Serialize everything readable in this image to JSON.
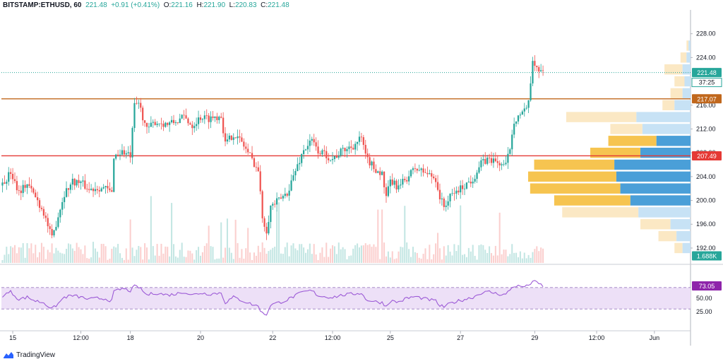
{
  "header": {
    "symbol": "BITSTAMP:ETHUSD, 60",
    "last": "221.48",
    "change": "+0.91 (+0.41%)",
    "o_label": "O:",
    "o": "221.16",
    "h_label": "H:",
    "h": "221.90",
    "l_label": "L:",
    "l": "220.83",
    "c_label": "C:",
    "c": "221.48"
  },
  "branding": {
    "logo": "tradingview-logo-icon",
    "name": "TradingView"
  },
  "colors": {
    "up": "#26a69a",
    "down": "#ef5350",
    "current_line": "#26a69a",
    "resistance": "#c0671c",
    "support": "#e53935",
    "rsi_line": "#9c5ad6",
    "rsi_band": "#ede0f7",
    "vp_up_hl": "#4a9fd8",
    "vp_up": "#c7e2f5",
    "vp_dn_hl": "#f6c450",
    "vp_dn": "#fbe8c4"
  },
  "chart_data": {
    "type": "candlestick",
    "price_axis": {
      "ylim": [
        189.5,
        232
      ],
      "ticks": [
        "192.00",
        "196.00",
        "200.00",
        "204.00",
        "208.00",
        "212.00",
        "216.00",
        "224.00",
        "228.00"
      ]
    },
    "time_axis": {
      "ticks": [
        "15",
        "12:00",
        "18",
        "20",
        "22",
        "12:00",
        "25",
        "27",
        "29",
        "12:00",
        "Jun"
      ],
      "tick_bars": [
        5,
        38,
        62,
        96,
        131,
        160,
        188,
        222,
        258,
        288,
        316
      ]
    },
    "current_price": {
      "value": 221.48,
      "label": "221.48",
      "countdown": "37:25"
    },
    "levels": [
      {
        "value": 217.07,
        "label": "217.07",
        "role": "resistance"
      },
      {
        "value": 207.49,
        "label": "207.49",
        "role": "support"
      }
    ],
    "volume_label": "1.688K",
    "path": [
      [
        0,
        202.5
      ],
      [
        4,
        204.8
      ],
      [
        8,
        201.5
      ],
      [
        12,
        202.8
      ],
      [
        16,
        200.6
      ],
      [
        20,
        198.0
      ],
      [
        24,
        193.5
      ],
      [
        27,
        197.5
      ],
      [
        30,
        201.2
      ],
      [
        34,
        203.2
      ],
      [
        38,
        203.0
      ],
      [
        42,
        201.8
      ],
      [
        46,
        202.2
      ],
      [
        50,
        202.0
      ],
      [
        53,
        201.2
      ],
      [
        54,
        207.5
      ],
      [
        58,
        208.2
      ],
      [
        62,
        207.4
      ],
      [
        64,
        215.8
      ],
      [
        66,
        216.4
      ],
      [
        70,
        211.8
      ],
      [
        74,
        213.2
      ],
      [
        80,
        212.8
      ],
      [
        84,
        213.2
      ],
      [
        88,
        214.0
      ],
      [
        92,
        212.6
      ],
      [
        96,
        214.0
      ],
      [
        100,
        213.8
      ],
      [
        106,
        214.3
      ],
      [
        108,
        209.5
      ],
      [
        112,
        211.2
      ],
      [
        116,
        209.8
      ],
      [
        120,
        207.5
      ],
      [
        124,
        205.0
      ],
      [
        126,
        197.2
      ],
      [
        128,
        195.0
      ],
      [
        130,
        199.0
      ],
      [
        134,
        200.0
      ],
      [
        138,
        201.3
      ],
      [
        142,
        205.0
      ],
      [
        146,
        208.5
      ],
      [
        150,
        210.0
      ],
      [
        153,
        208.3
      ],
      [
        156,
        207.8
      ],
      [
        160,
        207.0
      ],
      [
        165,
        208.4
      ],
      [
        170,
        209.2
      ],
      [
        174,
        210.5
      ],
      [
        176,
        207.3
      ],
      [
        180,
        205.5
      ],
      [
        184,
        204.4
      ],
      [
        186,
        200.3
      ],
      [
        188,
        203.2
      ],
      [
        192,
        202.2
      ],
      [
        196,
        203.8
      ],
      [
        200,
        205.4
      ],
      [
        206,
        204.5
      ],
      [
        210,
        203.6
      ],
      [
        212,
        200.5
      ],
      [
        214,
        199.0
      ],
      [
        218,
        201.0
      ],
      [
        222,
        202.0
      ],
      [
        228,
        203.6
      ],
      [
        232,
        206.2
      ],
      [
        236,
        207.0
      ],
      [
        240,
        206.3
      ],
      [
        244,
        205.8
      ],
      [
        246,
        209.0
      ],
      [
        248,
        213.5
      ],
      [
        251,
        214.5
      ],
      [
        254,
        215.0
      ],
      [
        256,
        219.0
      ],
      [
        257,
        223.5
      ],
      [
        260,
        222.0
      ],
      [
        262,
        221.48
      ]
    ],
    "rsi": {
      "label": "73.05",
      "value": 73.05,
      "ticks": [
        "25.00",
        "50.00"
      ],
      "band": [
        30,
        70
      ],
      "path": [
        [
          0,
          55
        ],
        [
          4,
          62
        ],
        [
          8,
          48
        ],
        [
          12,
          52
        ],
        [
          16,
          45
        ],
        [
          20,
          42
        ],
        [
          24,
          30
        ],
        [
          27,
          40
        ],
        [
          30,
          52
        ],
        [
          34,
          55
        ],
        [
          38,
          52
        ],
        [
          42,
          48
        ],
        [
          46,
          50
        ],
        [
          50,
          49
        ],
        [
          53,
          45
        ],
        [
          54,
          62
        ],
        [
          58,
          68
        ],
        [
          62,
          64
        ],
        [
          64,
          72
        ],
        [
          66,
          71
        ],
        [
          70,
          56
        ],
        [
          74,
          60
        ],
        [
          80,
          56
        ],
        [
          84,
          58
        ],
        [
          88,
          62
        ],
        [
          92,
          56
        ],
        [
          96,
          60
        ],
        [
          100,
          58
        ],
        [
          106,
          60
        ],
        [
          108,
          42
        ],
        [
          112,
          52
        ],
        [
          116,
          46
        ],
        [
          120,
          40
        ],
        [
          124,
          35
        ],
        [
          126,
          22
        ],
        [
          128,
          20
        ],
        [
          130,
          38
        ],
        [
          134,
          42
        ],
        [
          138,
          47
        ],
        [
          142,
          55
        ],
        [
          146,
          62
        ],
        [
          150,
          64
        ],
        [
          153,
          55
        ],
        [
          156,
          53
        ],
        [
          160,
          52
        ],
        [
          165,
          56
        ],
        [
          170,
          58
        ],
        [
          174,
          60
        ],
        [
          176,
          48
        ],
        [
          180,
          44
        ],
        [
          184,
          42
        ],
        [
          186,
          35
        ],
        [
          188,
          45
        ],
        [
          192,
          43
        ],
        [
          196,
          50
        ],
        [
          200,
          53
        ],
        [
          206,
          48
        ],
        [
          210,
          45
        ],
        [
          212,
          36
        ],
        [
          214,
          34
        ],
        [
          218,
          42
        ],
        [
          222,
          46
        ],
        [
          228,
          52
        ],
        [
          232,
          60
        ],
        [
          236,
          62
        ],
        [
          240,
          58
        ],
        [
          244,
          57
        ],
        [
          246,
          66
        ],
        [
          248,
          73
        ],
        [
          251,
          72
        ],
        [
          254,
          72
        ],
        [
          256,
          78
        ],
        [
          257,
          82
        ],
        [
          260,
          77
        ],
        [
          262,
          73
        ]
      ]
    },
    "volume_profile": {
      "rows": [
        {
          "price": 226.0,
          "up": 1,
          "dn": 1
        },
        {
          "price": 224.0,
          "up": 2,
          "dn": 3
        },
        {
          "price": 222.0,
          "up": 4,
          "dn": 9
        },
        {
          "price": 220.0,
          "up": 3,
          "dn": 5
        },
        {
          "price": 218.0,
          "up": 4,
          "dn": 6
        },
        {
          "price": 216.0,
          "up": 8,
          "dn": 6
        },
        {
          "price": 214.0,
          "up": 27,
          "dn": 35
        },
        {
          "price": 212.0,
          "up": 24,
          "dn": 16
        },
        {
          "price": 210.0,
          "up": 17,
          "dn": 24
        },
        {
          "price": 208.0,
          "up": 25,
          "dn": 25
        },
        {
          "price": 206.0,
          "up": 38,
          "dn": 40
        },
        {
          "price": 204.0,
          "up": 37,
          "dn": 44
        },
        {
          "price": 202.0,
          "up": 35,
          "dn": 45
        },
        {
          "price": 200.0,
          "up": 30,
          "dn": 38
        },
        {
          "price": 198.0,
          "up": 26,
          "dn": 38
        },
        {
          "price": 196.0,
          "up": 10,
          "dn": 15
        },
        {
          "price": 194.0,
          "up": 7,
          "dn": 9
        },
        {
          "price": 192.0,
          "up": 4,
          "dn": 4
        }
      ],
      "value_area": [
        199.0,
        211.0
      ]
    }
  }
}
